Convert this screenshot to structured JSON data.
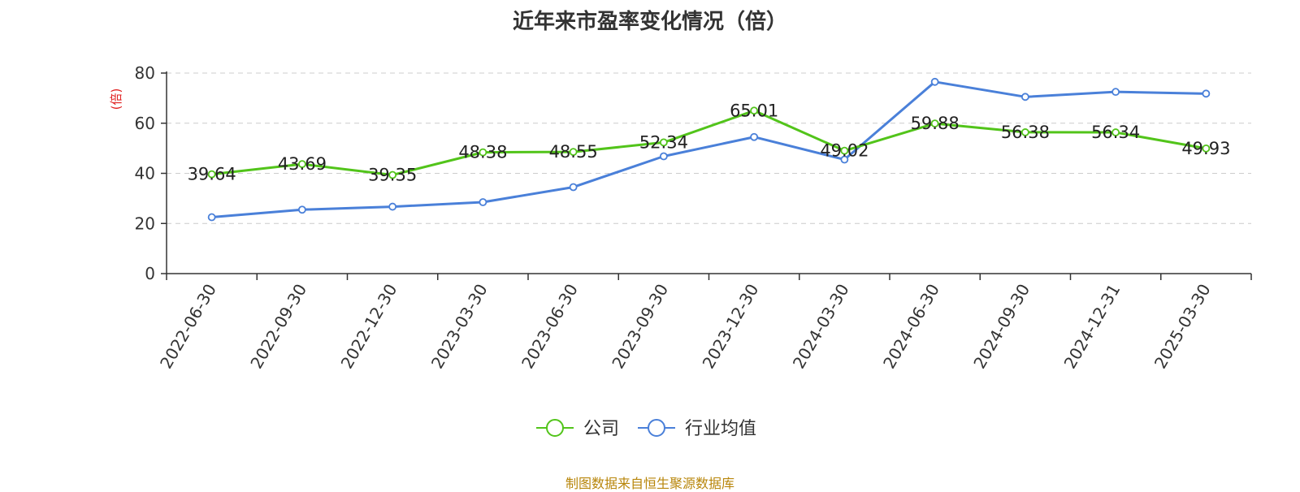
{
  "chart_data": {
    "type": "line",
    "title": "近年来市盈率变化情况（倍）",
    "ylabel": "(倍)",
    "source": "制图数据来自恒生聚源数据库",
    "ylim": [
      0,
      80
    ],
    "yticks": [
      0,
      20,
      40,
      60,
      80
    ],
    "grid": true,
    "legend_position": "bottom",
    "categories": [
      "2022-06-30",
      "2022-09-30",
      "2022-12-30",
      "2023-03-30",
      "2023-06-30",
      "2023-09-30",
      "2023-12-30",
      "2024-03-30",
      "2024-06-30",
      "2024-09-30",
      "2024-12-31",
      "2025-03-30"
    ],
    "series": [
      {
        "name": "公司",
        "color": "#52c41a",
        "show_labels": true,
        "values": [
          39.64,
          43.69,
          39.35,
          48.38,
          48.55,
          52.34,
          65.01,
          49.02,
          59.88,
          56.38,
          56.34,
          49.93
        ]
      },
      {
        "name": "行业均值",
        "color": "#4a80d9",
        "show_labels": false,
        "values": [
          22.5,
          25.5,
          26.7,
          28.5,
          34.5,
          46.8,
          54.5,
          45.5,
          76.5,
          70.5,
          72.5,
          71.8
        ]
      }
    ]
  }
}
